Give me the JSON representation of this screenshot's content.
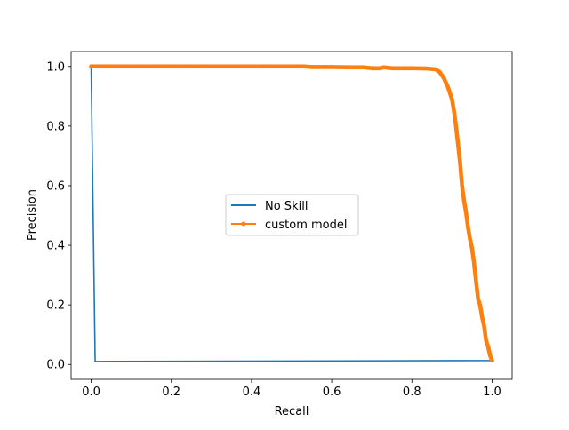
{
  "chart_data": {
    "type": "line",
    "title": "",
    "xlabel": "Recall",
    "ylabel": "Precision",
    "xlim": [
      -0.05,
      1.05
    ],
    "ylim": [
      -0.05,
      1.05
    ],
    "xticks": [
      0.0,
      0.2,
      0.4,
      0.6,
      0.8,
      1.0
    ],
    "yticks": [
      0.0,
      0.2,
      0.4,
      0.6,
      0.8,
      1.0
    ],
    "xtick_labels": [
      "0.0",
      "0.2",
      "0.4",
      "0.6",
      "0.8",
      "1.0"
    ],
    "ytick_labels": [
      "0.0",
      "0.2",
      "0.4",
      "0.6",
      "0.8",
      "1.0"
    ],
    "grid": false,
    "legend": {
      "position": "center"
    },
    "series": [
      {
        "name": "No Skill",
        "color": "#1f77b4",
        "marker": "none",
        "x": [
          0.0,
          0.0,
          0.01,
          1.0
        ],
        "y": [
          1.0,
          0.99,
          0.01,
          0.013
        ]
      },
      {
        "name": "custom model",
        "color": "#ff7f0e",
        "marker": "dot",
        "x": [
          0.0,
          0.05,
          0.1,
          0.15,
          0.2,
          0.25,
          0.3,
          0.35,
          0.4,
          0.45,
          0.5,
          0.53,
          0.55,
          0.6,
          0.65,
          0.68,
          0.7,
          0.72,
          0.73,
          0.75,
          0.8,
          0.84,
          0.86,
          0.87,
          0.88,
          0.89,
          0.9,
          0.905,
          0.91,
          0.915,
          0.92,
          0.925,
          0.93,
          0.935,
          0.94,
          0.945,
          0.95,
          0.955,
          0.96,
          0.965,
          0.97,
          0.975,
          0.98,
          0.985,
          0.99,
          0.995,
          1.0
        ],
        "y": [
          1.0,
          1.0,
          1.0,
          1.0,
          1.0,
          1.0,
          1.0,
          1.0,
          1.0,
          1.0,
          1.0,
          1.0,
          0.998,
          0.998,
          0.997,
          0.997,
          0.994,
          0.994,
          0.997,
          0.994,
          0.994,
          0.993,
          0.99,
          0.98,
          0.96,
          0.93,
          0.89,
          0.85,
          0.8,
          0.74,
          0.68,
          0.6,
          0.55,
          0.51,
          0.46,
          0.42,
          0.39,
          0.34,
          0.28,
          0.22,
          0.2,
          0.16,
          0.13,
          0.08,
          0.06,
          0.03,
          0.013
        ]
      }
    ]
  }
}
